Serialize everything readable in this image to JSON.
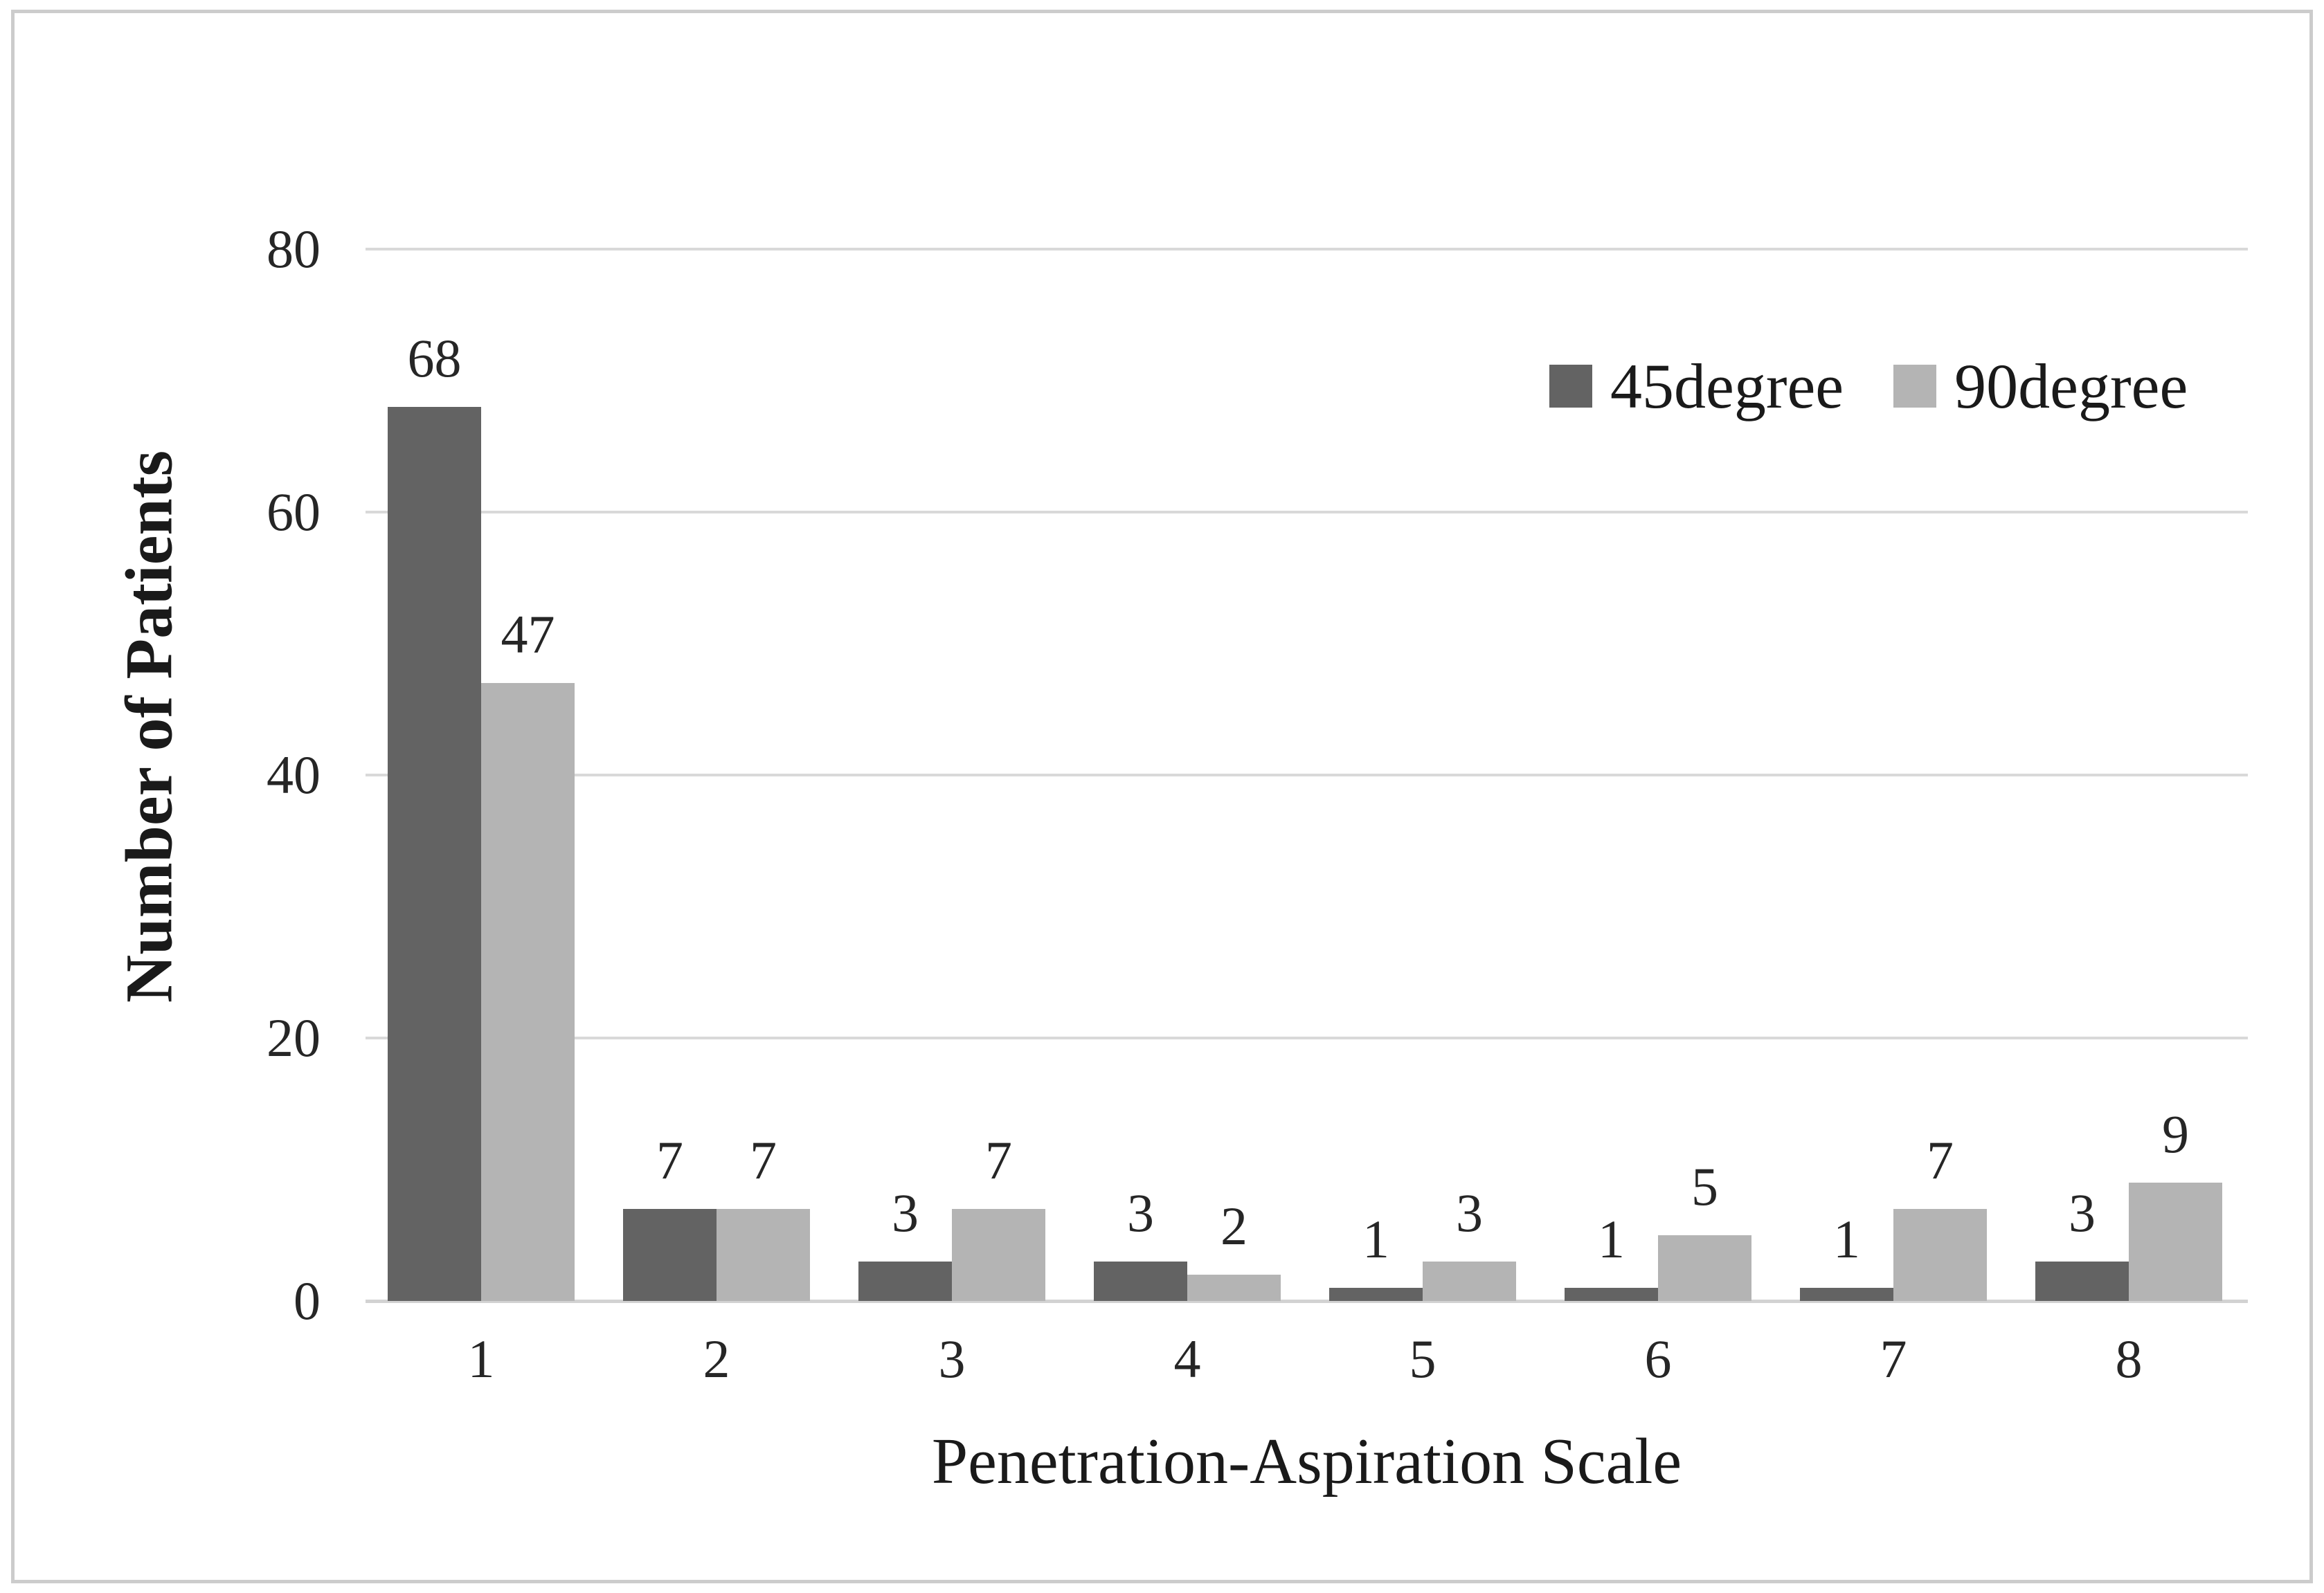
{
  "figure": {
    "background": "#ffffff",
    "border_color": "#cccccc"
  },
  "chart_data": {
    "type": "bar",
    "title": "",
    "categories": [
      "1",
      "2",
      "3",
      "4",
      "5",
      "6",
      "7",
      "8"
    ],
    "series": [
      {
        "name": "45degree",
        "color": "#636363",
        "values": [
          68,
          7,
          3,
          3,
          1,
          1,
          1,
          3
        ]
      },
      {
        "name": "90degree",
        "color": "#b4b4b4",
        "values": [
          47,
          7,
          7,
          2,
          3,
          5,
          7,
          9
        ]
      }
    ],
    "xlabel": "Penetration-Aspiration Scale",
    "ylabel": "Number of Patients",
    "ylim": [
      0,
      80
    ],
    "yticks": [
      0,
      20,
      40,
      60,
      80
    ],
    "grid": true,
    "gridline_color": "#d9d9d9",
    "axis_line_color": "#d2d2d2",
    "text_color": "#262626",
    "legend_position": "top-right",
    "data_labels": true
  }
}
